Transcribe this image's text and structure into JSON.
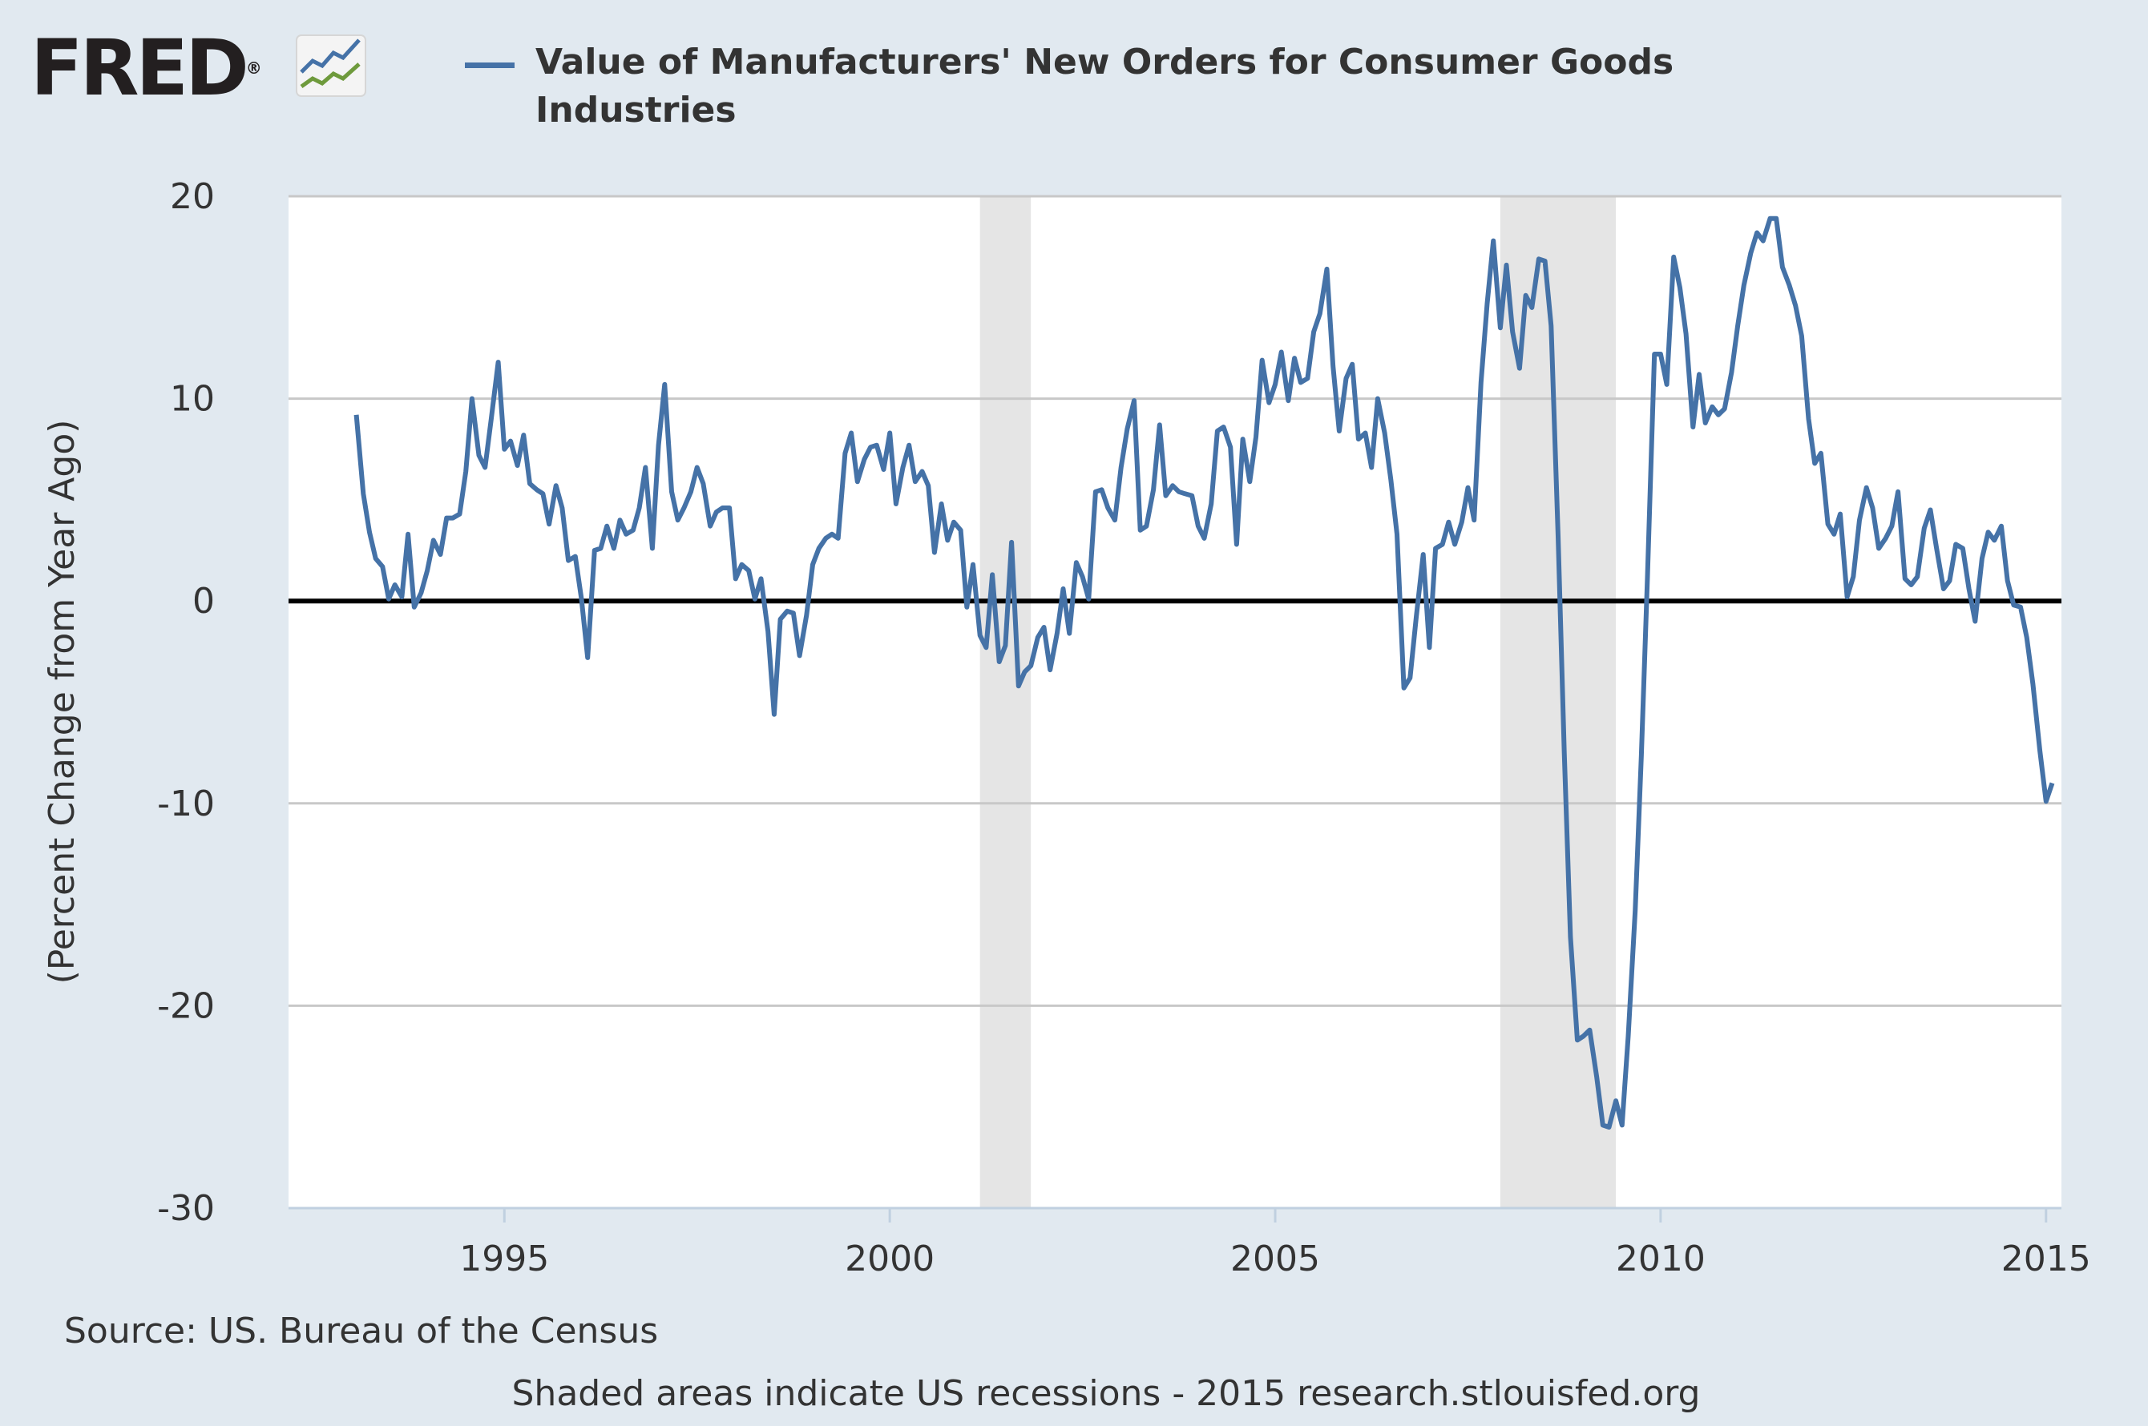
{
  "logo": {
    "text": "FRED",
    "mark": "®",
    "icon": "chart-line-icon"
  },
  "colors": {
    "background": "#e1e9f0",
    "plot_bg": "#ffffff",
    "series": "#4572a7",
    "recession": "#e5e5e5",
    "grid": "#c8c8c8",
    "zero_line": "#000000"
  },
  "footer": {
    "source": "Source: US. Bureau of the Census",
    "note": "Shaded areas indicate US recessions - 2015 research.stlouisfed.org"
  },
  "chart_data": {
    "type": "line",
    "title": "",
    "xlabel": "",
    "ylabel": "(Percent Change from Year Ago)",
    "xlim": [
      1992.2,
      2015.2
    ],
    "ylim": [
      -30,
      20
    ],
    "yticks": [
      20,
      10,
      0,
      -10,
      -20,
      -30
    ],
    "ytick_labels": [
      "20",
      "10",
      "0",
      "-10",
      "-20",
      "-30"
    ],
    "xticks": [
      1995,
      2000,
      2005,
      2010,
      2015
    ],
    "xtick_labels": [
      "1995",
      "2000",
      "2005",
      "2010",
      "2015"
    ],
    "grid": true,
    "legend_position": "top",
    "recessions": [
      [
        2001.17,
        2001.83
      ],
      [
        2007.92,
        2009.42
      ]
    ],
    "series": [
      {
        "name": "Value of Manufacturers' New Orders for Consumer Goods Industries",
        "color": "#4572a7",
        "points": [
          [
            1993.08,
            9.2
          ],
          [
            1993.17,
            5.3
          ],
          [
            1993.25,
            3.4
          ],
          [
            1993.33,
            2.1
          ],
          [
            1993.42,
            1.7
          ],
          [
            1993.5,
            0.1
          ],
          [
            1993.58,
            0.8
          ],
          [
            1993.67,
            0.2
          ],
          [
            1993.75,
            3.3
          ],
          [
            1993.83,
            -0.3
          ],
          [
            1993.92,
            0.4
          ],
          [
            1994.0,
            1.5
          ],
          [
            1994.08,
            3.0
          ],
          [
            1994.17,
            2.3
          ],
          [
            1994.25,
            4.1
          ],
          [
            1994.33,
            4.1
          ],
          [
            1994.42,
            4.3
          ],
          [
            1994.5,
            6.4
          ],
          [
            1994.58,
            10.0
          ],
          [
            1994.67,
            7.2
          ],
          [
            1994.75,
            6.6
          ],
          [
            1994.83,
            9.0
          ],
          [
            1994.92,
            11.8
          ],
          [
            1995.0,
            7.5
          ],
          [
            1995.08,
            7.9
          ],
          [
            1995.17,
            6.7
          ],
          [
            1995.25,
            8.2
          ],
          [
            1995.33,
            5.8
          ],
          [
            1995.42,
            5.5
          ],
          [
            1995.5,
            5.3
          ],
          [
            1995.58,
            3.8
          ],
          [
            1995.67,
            5.7
          ],
          [
            1995.75,
            4.6
          ],
          [
            1995.83,
            2.0
          ],
          [
            1995.92,
            2.2
          ],
          [
            1996.0,
            0.1
          ],
          [
            1996.08,
            -2.8
          ],
          [
            1996.17,
            2.5
          ],
          [
            1996.25,
            2.6
          ],
          [
            1996.33,
            3.7
          ],
          [
            1996.42,
            2.6
          ],
          [
            1996.5,
            4.0
          ],
          [
            1996.58,
            3.3
          ],
          [
            1996.67,
            3.5
          ],
          [
            1996.75,
            4.6
          ],
          [
            1996.83,
            6.6
          ],
          [
            1996.92,
            2.6
          ],
          [
            1997.0,
            7.7
          ],
          [
            1997.08,
            10.7
          ],
          [
            1997.17,
            5.4
          ],
          [
            1997.25,
            4.0
          ],
          [
            1997.33,
            4.6
          ],
          [
            1997.42,
            5.4
          ],
          [
            1997.5,
            6.6
          ],
          [
            1997.58,
            5.8
          ],
          [
            1997.67,
            3.7
          ],
          [
            1997.75,
            4.4
          ],
          [
            1997.83,
            4.6
          ],
          [
            1997.92,
            4.6
          ],
          [
            1998.0,
            1.1
          ],
          [
            1998.08,
            1.8
          ],
          [
            1998.17,
            1.5
          ],
          [
            1998.25,
            0.1
          ],
          [
            1998.33,
            1.1
          ],
          [
            1998.42,
            -1.5
          ],
          [
            1998.5,
            -5.6
          ],
          [
            1998.58,
            -0.9
          ],
          [
            1998.67,
            -0.5
          ],
          [
            1998.75,
            -0.6
          ],
          [
            1998.83,
            -2.7
          ],
          [
            1998.92,
            -0.7
          ],
          [
            1999.0,
            1.8
          ],
          [
            1999.08,
            2.6
          ],
          [
            1999.17,
            3.1
          ],
          [
            1999.25,
            3.3
          ],
          [
            1999.33,
            3.1
          ],
          [
            1999.42,
            7.3
          ],
          [
            1999.5,
            8.3
          ],
          [
            1999.58,
            5.9
          ],
          [
            1999.67,
            7.0
          ],
          [
            1999.75,
            7.6
          ],
          [
            1999.83,
            7.7
          ],
          [
            1999.92,
            6.5
          ],
          [
            2000.0,
            8.3
          ],
          [
            2000.08,
            4.8
          ],
          [
            2000.17,
            6.6
          ],
          [
            2000.25,
            7.7
          ],
          [
            2000.33,
            5.9
          ],
          [
            2000.42,
            6.4
          ],
          [
            2000.5,
            5.7
          ],
          [
            2000.58,
            2.4
          ],
          [
            2000.67,
            4.8
          ],
          [
            2000.75,
            3.0
          ],
          [
            2000.83,
            3.9
          ],
          [
            2000.92,
            3.5
          ],
          [
            2001.0,
            -0.3
          ],
          [
            2001.08,
            1.8
          ],
          [
            2001.17,
            -1.7
          ],
          [
            2001.25,
            -2.3
          ],
          [
            2001.33,
            1.3
          ],
          [
            2001.42,
            -3.0
          ],
          [
            2001.5,
            -2.2
          ],
          [
            2001.58,
            2.9
          ],
          [
            2001.67,
            -4.2
          ],
          [
            2001.75,
            -3.5
          ],
          [
            2001.83,
            -3.2
          ],
          [
            2001.92,
            -1.8
          ],
          [
            2002.0,
            -1.3
          ],
          [
            2002.08,
            -3.4
          ],
          [
            2002.17,
            -1.6
          ],
          [
            2002.25,
            0.6
          ],
          [
            2002.33,
            -1.6
          ],
          [
            2002.42,
            1.9
          ],
          [
            2002.5,
            1.2
          ],
          [
            2002.58,
            0.1
          ],
          [
            2002.67,
            5.4
          ],
          [
            2002.75,
            5.5
          ],
          [
            2002.83,
            4.6
          ],
          [
            2002.92,
            4.0
          ],
          [
            2003.0,
            6.6
          ],
          [
            2003.08,
            8.5
          ],
          [
            2003.17,
            9.9
          ],
          [
            2003.25,
            3.5
          ],
          [
            2003.33,
            3.7
          ],
          [
            2003.42,
            5.5
          ],
          [
            2003.5,
            8.7
          ],
          [
            2003.58,
            5.2
          ],
          [
            2003.67,
            5.7
          ],
          [
            2003.75,
            5.4
          ],
          [
            2003.83,
            5.3
          ],
          [
            2003.92,
            5.2
          ],
          [
            2004.0,
            3.7
          ],
          [
            2004.08,
            3.1
          ],
          [
            2004.17,
            4.8
          ],
          [
            2004.25,
            8.4
          ],
          [
            2004.33,
            8.6
          ],
          [
            2004.42,
            7.6
          ],
          [
            2004.5,
            2.8
          ],
          [
            2004.58,
            8.0
          ],
          [
            2004.67,
            5.9
          ],
          [
            2004.75,
            8.1
          ],
          [
            2004.83,
            11.9
          ],
          [
            2004.92,
            9.8
          ],
          [
            2005.0,
            10.7
          ],
          [
            2005.08,
            12.3
          ],
          [
            2005.17,
            9.9
          ],
          [
            2005.25,
            12.0
          ],
          [
            2005.33,
            10.8
          ],
          [
            2005.42,
            11.0
          ],
          [
            2005.5,
            13.3
          ],
          [
            2005.58,
            14.2
          ],
          [
            2005.67,
            16.4
          ],
          [
            2005.75,
            11.6
          ],
          [
            2005.83,
            8.4
          ],
          [
            2005.92,
            11.0
          ],
          [
            2006.0,
            11.7
          ],
          [
            2006.08,
            8.0
          ],
          [
            2006.17,
            8.3
          ],
          [
            2006.25,
            6.6
          ],
          [
            2006.33,
            10.0
          ],
          [
            2006.42,
            8.3
          ],
          [
            2006.5,
            6.0
          ],
          [
            2006.58,
            3.3
          ],
          [
            2006.67,
            -4.3
          ],
          [
            2006.75,
            -3.8
          ],
          [
            2006.83,
            -0.8
          ],
          [
            2006.92,
            2.3
          ],
          [
            2007.0,
            -2.3
          ],
          [
            2007.08,
            2.6
          ],
          [
            2007.17,
            2.8
          ],
          [
            2007.25,
            3.9
          ],
          [
            2007.33,
            2.8
          ],
          [
            2007.42,
            3.9
          ],
          [
            2007.5,
            5.6
          ],
          [
            2007.58,
            4.0
          ],
          [
            2007.67,
            10.8
          ],
          [
            2007.75,
            14.7
          ],
          [
            2007.83,
            17.8
          ],
          [
            2007.92,
            13.5
          ],
          [
            2008.0,
            16.6
          ],
          [
            2008.08,
            13.3
          ],
          [
            2008.17,
            11.5
          ],
          [
            2008.25,
            15.1
          ],
          [
            2008.33,
            14.5
          ],
          [
            2008.42,
            16.9
          ],
          [
            2008.5,
            16.8
          ],
          [
            2008.58,
            13.6
          ],
          [
            2008.67,
            3.2
          ],
          [
            2008.75,
            -7.5
          ],
          [
            2008.83,
            -16.6
          ],
          [
            2008.92,
            -21.7
          ],
          [
            2009.0,
            -21.5
          ],
          [
            2009.08,
            -21.2
          ],
          [
            2009.17,
            -23.5
          ],
          [
            2009.25,
            -25.9
          ],
          [
            2009.33,
            -26.0
          ],
          [
            2009.42,
            -24.7
          ],
          [
            2009.5,
            -25.9
          ],
          [
            2009.58,
            -21.5
          ],
          [
            2009.67,
            -15.3
          ],
          [
            2009.75,
            -7.6
          ],
          [
            2009.83,
            1.2
          ],
          [
            2009.92,
            12.2
          ],
          [
            2010.0,
            12.2
          ],
          [
            2010.08,
            10.7
          ],
          [
            2010.17,
            17.0
          ],
          [
            2010.25,
            15.5
          ],
          [
            2010.33,
            13.2
          ],
          [
            2010.42,
            8.6
          ],
          [
            2010.5,
            11.2
          ],
          [
            2010.58,
            8.8
          ],
          [
            2010.67,
            9.6
          ],
          [
            2010.75,
            9.2
          ],
          [
            2010.83,
            9.5
          ],
          [
            2010.92,
            11.3
          ],
          [
            2011.0,
            13.6
          ],
          [
            2011.08,
            15.6
          ],
          [
            2011.17,
            17.2
          ],
          [
            2011.25,
            18.2
          ],
          [
            2011.33,
            17.8
          ],
          [
            2011.42,
            18.9
          ],
          [
            2011.5,
            18.9
          ],
          [
            2011.58,
            16.5
          ],
          [
            2011.67,
            15.6
          ],
          [
            2011.75,
            14.6
          ],
          [
            2011.83,
            13.1
          ],
          [
            2011.92,
            9.0
          ],
          [
            2012.0,
            6.8
          ],
          [
            2012.08,
            7.3
          ],
          [
            2012.17,
            3.8
          ],
          [
            2012.25,
            3.3
          ],
          [
            2012.33,
            4.3
          ],
          [
            2012.42,
            0.2
          ],
          [
            2012.5,
            1.2
          ],
          [
            2012.58,
            4.0
          ],
          [
            2012.67,
            5.6
          ],
          [
            2012.75,
            4.6
          ],
          [
            2012.83,
            2.6
          ],
          [
            2012.92,
            3.1
          ],
          [
            2013.0,
            3.7
          ],
          [
            2013.08,
            5.4
          ],
          [
            2013.17,
            1.1
          ],
          [
            2013.25,
            0.8
          ],
          [
            2013.33,
            1.2
          ],
          [
            2013.42,
            3.6
          ],
          [
            2013.5,
            4.5
          ],
          [
            2013.58,
            2.6
          ],
          [
            2013.67,
            0.6
          ],
          [
            2013.75,
            1.0
          ],
          [
            2013.83,
            2.8
          ],
          [
            2013.92,
            2.6
          ],
          [
            2014.0,
            0.6
          ],
          [
            2014.08,
            -1.0
          ],
          [
            2014.17,
            2.1
          ],
          [
            2014.25,
            3.4
          ],
          [
            2014.33,
            3.0
          ],
          [
            2014.42,
            3.7
          ],
          [
            2014.5,
            1.0
          ],
          [
            2014.58,
            -0.2
          ],
          [
            2014.67,
            -0.3
          ],
          [
            2014.75,
            -1.8
          ],
          [
            2014.83,
            -4.1
          ],
          [
            2014.92,
            -7.4
          ],
          [
            2015.0,
            -9.9
          ],
          [
            2015.08,
            -9.0
          ]
        ]
      }
    ]
  }
}
